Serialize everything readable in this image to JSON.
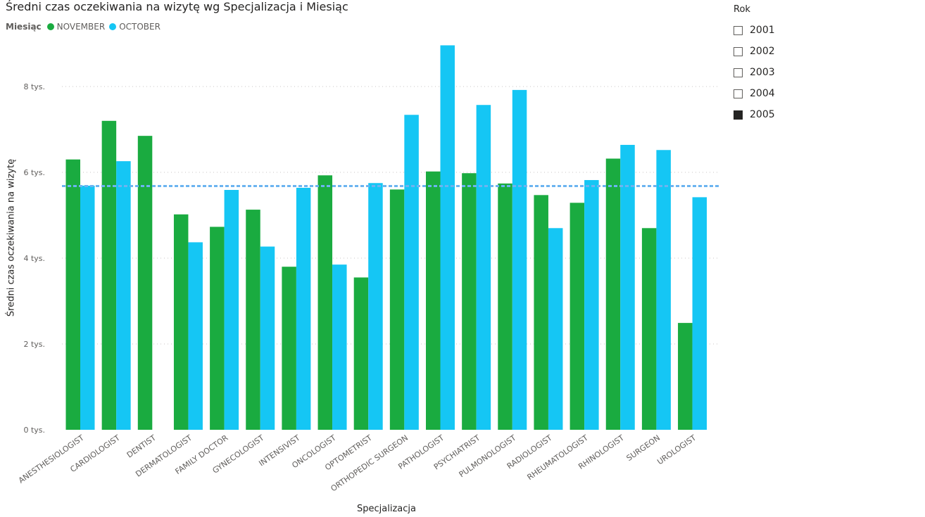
{
  "chart": {
    "title": "Średni czas oczekiwania na wizytę wg Specjalizacja i Miesiąc",
    "legend_title": "Miesiąc",
    "ylabel": "Średni czas oczekiwania na wizytę",
    "xlabel": "Specjalizacja"
  },
  "chart_data": {
    "type": "bar",
    "title": "Średni czas oczekiwania na wizytę wg Specjalizacja i Miesiąc",
    "xlabel": "Specjalizacja",
    "ylabel": "Średni czas oczekiwania na wizytę",
    "ylim": [
      0,
      9000
    ],
    "y_ticks": [
      0,
      2000,
      4000,
      6000,
      8000
    ],
    "y_tick_labels": [
      "0 tys.",
      "2 tys.",
      "4 tys.",
      "6 tys.",
      "8 tys."
    ],
    "grid": true,
    "legend_position": "top-left",
    "average_line": 5680,
    "categories": [
      "ANESTHESIOLOGIST",
      "CARDIOLOGIST",
      "DENTIST",
      "DERMATOLOGIST",
      "FAMILY DOCTOR",
      "GYNECOLOGIST",
      "INTENSIVIST",
      "ONCOLOGIST",
      "OPTOMETRIST",
      "ORTHOPEDIC SURGEON",
      "PATHOLOGIST",
      "PSYCHIATRIST",
      "PULMONOLOGIST",
      "RADIOLOGIST",
      "RHEUMATOLOGIST",
      "RHINOLOGIST",
      "SURGEON",
      "UROLOGIST"
    ],
    "series": [
      {
        "name": "NOVEMBER",
        "color": "#1aab40",
        "values": [
          6300,
          7200,
          6850,
          5020,
          4730,
          5130,
          3800,
          5930,
          3550,
          5600,
          6020,
          5980,
          5740,
          5470,
          5290,
          6320,
          4700,
          2490
        ]
      },
      {
        "name": "OCTOBER",
        "color": "#15c6f4",
        "values": [
          5690,
          6260,
          null,
          4370,
          5590,
          4270,
          5640,
          3850,
          5750,
          7340,
          8960,
          7570,
          7920,
          4700,
          5820,
          6640,
          6520,
          5420
        ]
      }
    ]
  },
  "slicer": {
    "title": "Rok",
    "items": [
      {
        "label": "2001",
        "checked": false
      },
      {
        "label": "2002",
        "checked": false
      },
      {
        "label": "2003",
        "checked": false
      },
      {
        "label": "2004",
        "checked": false
      },
      {
        "label": "2005",
        "checked": true
      }
    ]
  }
}
